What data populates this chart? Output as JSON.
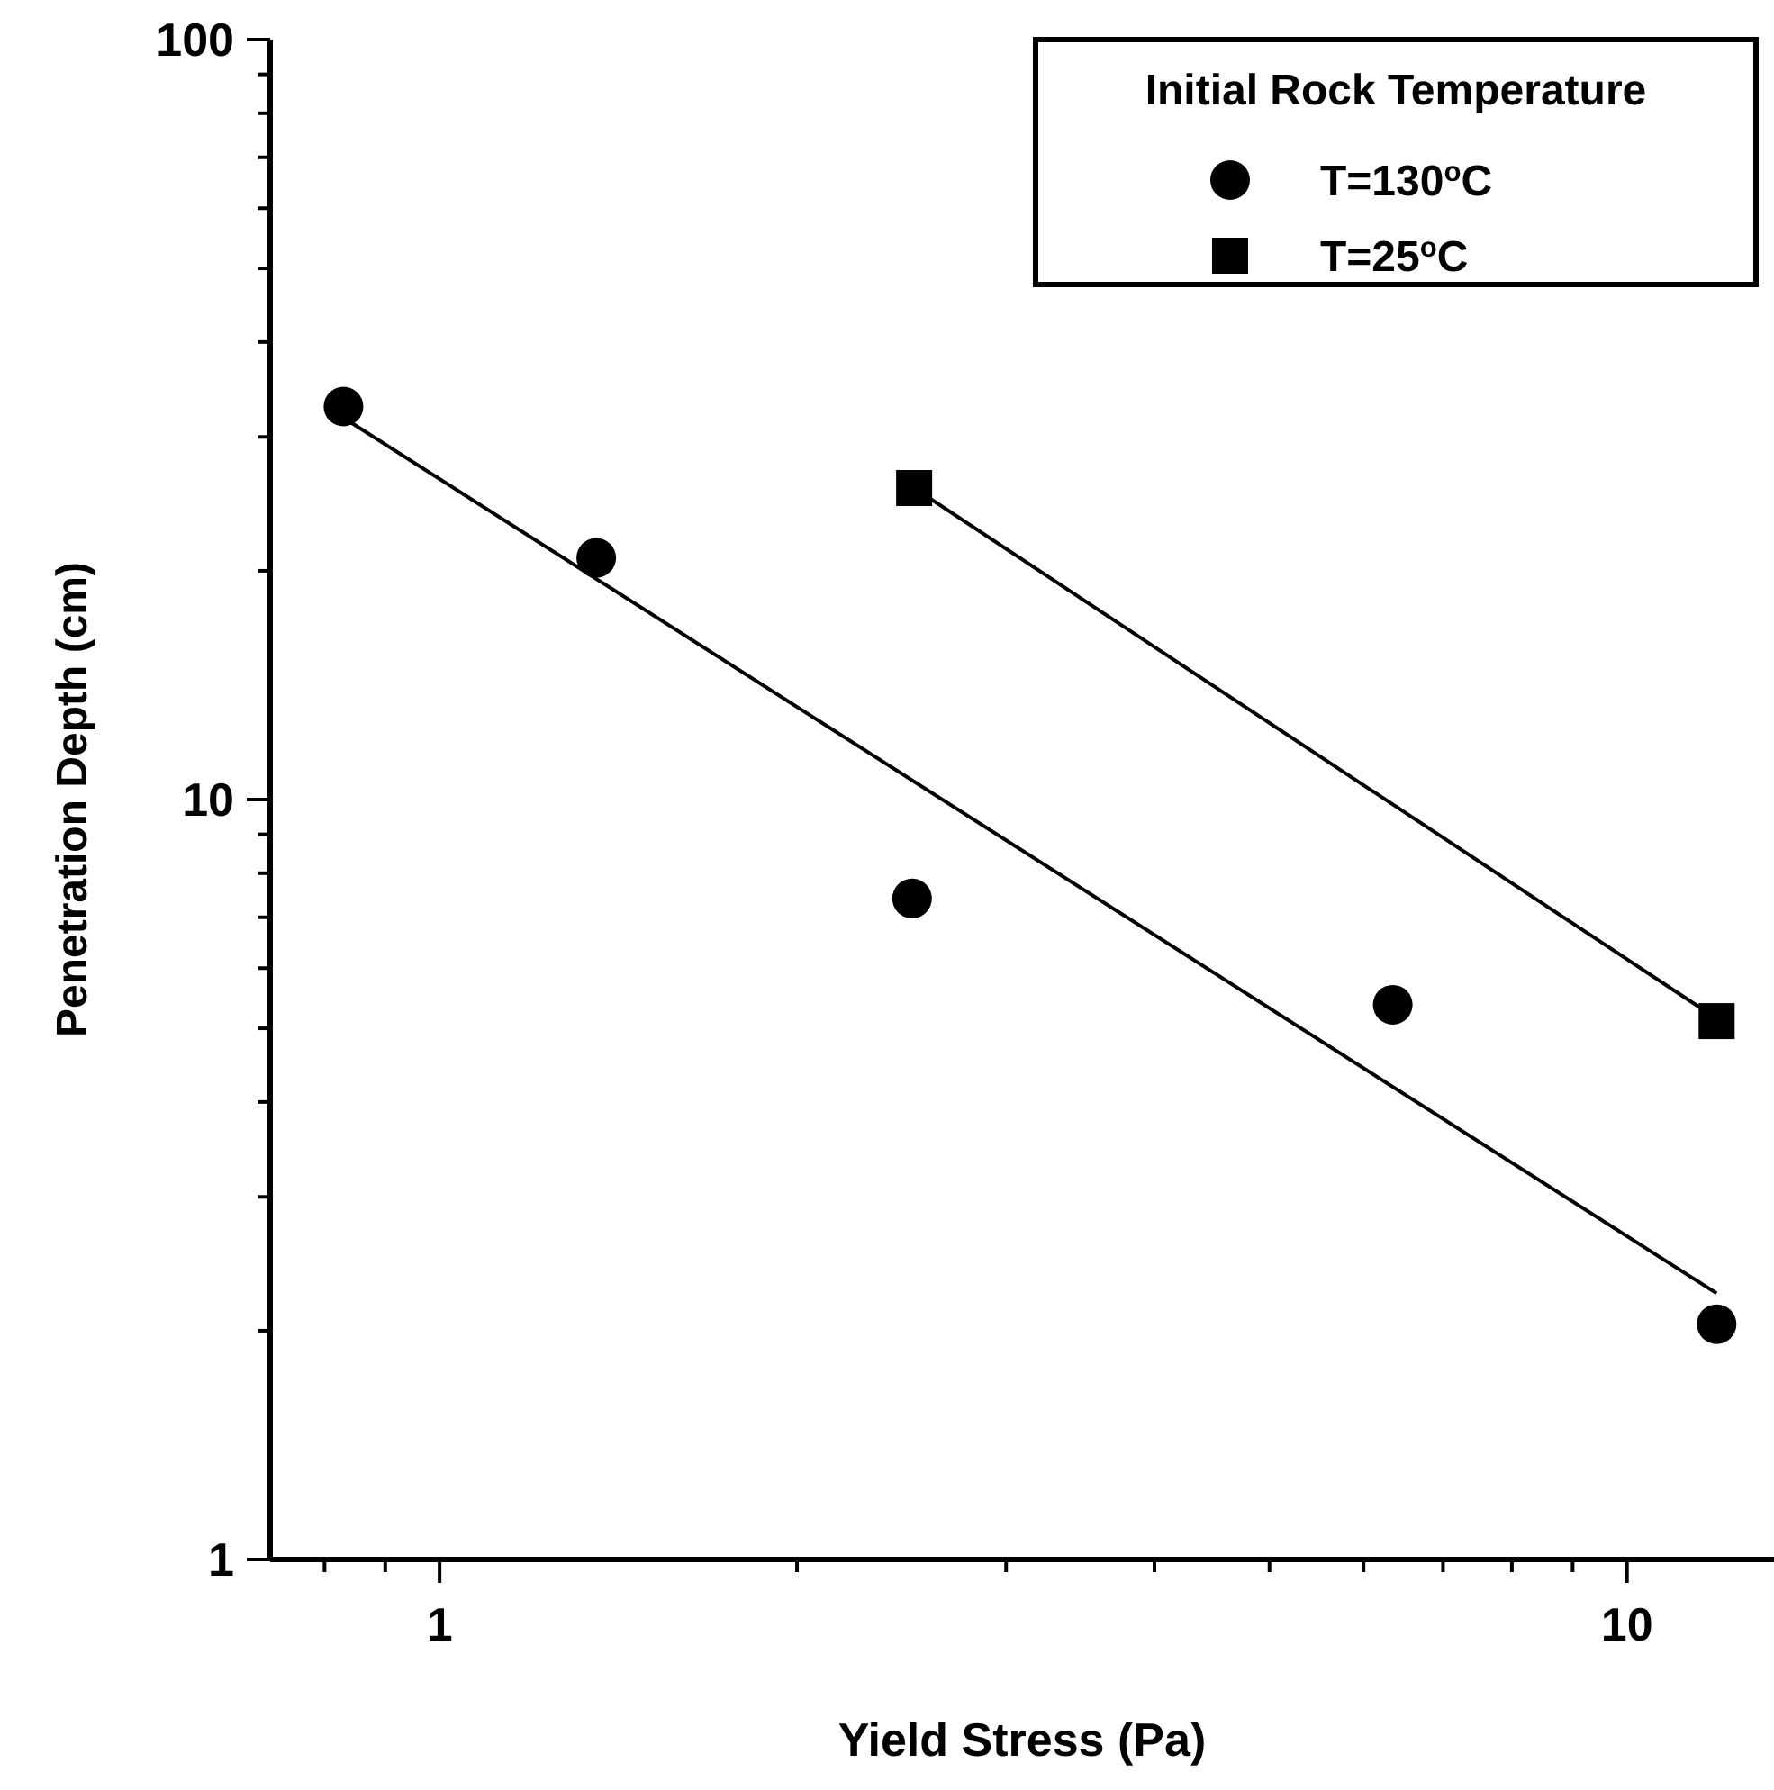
{
  "chart_data": {
    "type": "scatter",
    "xlabel": "Yield Stress (Pa)",
    "ylabel": "Penetration Depth (cm)",
    "legend_title": "Initial Rock Temperature",
    "log": "xy",
    "grid": false,
    "legend": "top right",
    "xlim": [
      0.72,
      13.3
    ],
    "ylim": [
      1,
      100
    ],
    "xticks": [
      {
        "value": 0.8,
        "label": null
      },
      {
        "value": 0.9,
        "label": null
      },
      1,
      {
        "value": 2,
        "label": null
      },
      {
        "value": 3,
        "label": null
      },
      {
        "value": 4,
        "label": null
      },
      {
        "value": 5,
        "label": null
      },
      {
        "value": 6,
        "label": null
      },
      {
        "value": 7,
        "label": null
      },
      {
        "value": 8,
        "label": null
      },
      {
        "value": 9,
        "label": null
      },
      10
    ],
    "yticks": [
      1,
      {
        "value": 2,
        "label": null
      },
      {
        "value": 3,
        "label": null
      },
      {
        "value": 4,
        "label": null
      },
      {
        "value": 5,
        "label": null
      },
      {
        "value": 6,
        "label": null
      },
      {
        "value": 7,
        "label": null
      },
      {
        "value": 8,
        "label": null
      },
      {
        "value": 9,
        "label": null
      },
      10,
      {
        "value": 20,
        "label": null
      },
      {
        "value": 30,
        "label": null
      },
      {
        "value": 40,
        "label": null
      },
      {
        "value": 50,
        "label": null
      },
      {
        "value": 60,
        "label": null
      },
      {
        "value": 70,
        "label": null
      },
      {
        "value": 80,
        "label": null
      },
      {
        "value": 90,
        "label": null
      },
      100
    ],
    "series": [
      {
        "name": "T=130$^{o}$C",
        "marker": "circle",
        "color": "#000000",
        "x": [
          0.83,
          1.355,
          2.5,
          6.35,
          11.9
        ],
        "values": [
          32.9,
          20.8,
          7.41,
          5.37,
          2.04
        ]
      },
      {
        "name": "T=25$^{o}$C",
        "marker": "square",
        "color": "#000000",
        "x": [
          2.51,
          11.9
        ],
        "values": [
          25.7,
          5.11
        ]
      },
      {
        "type": "line",
        "marker": "none",
        "color": "#000000",
        "x": [
          0.83,
          11.9
        ],
        "values": [
          31.8,
          2.24
        ]
      },
      {
        "type": "line",
        "marker": "none",
        "color": "#000000",
        "x": [
          2.51,
          11.9
        ],
        "values": [
          25.7,
          5.15
        ]
      }
    ]
  }
}
